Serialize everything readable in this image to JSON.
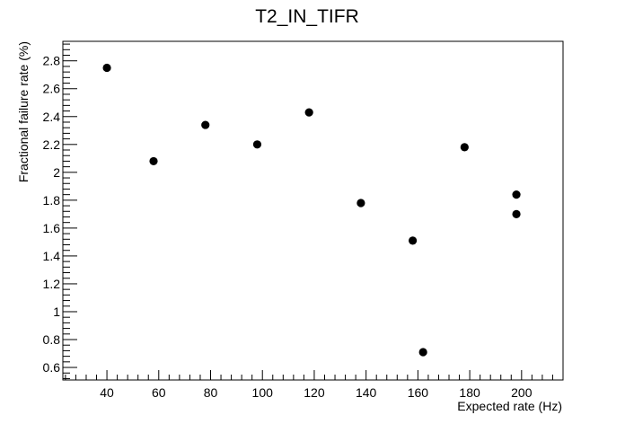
{
  "chart_data": {
    "type": "scatter",
    "title": "T2_IN_TIFR",
    "xlabel": "Expected rate (Hz)",
    "ylabel": "Fractional failure rate (%)",
    "xlim": [
      23,
      216
    ],
    "ylim": [
      0.51,
      2.94
    ],
    "x_ticks": [
      40,
      60,
      80,
      100,
      120,
      140,
      160,
      180,
      200
    ],
    "x_tick_labels": [
      "40",
      "60",
      "80",
      "100",
      "120",
      "140",
      "160",
      "180",
      "200"
    ],
    "y_ticks": [
      0.6,
      0.8,
      1,
      1.2,
      1.4,
      1.6,
      1.8,
      2,
      2.2,
      2.4,
      2.6,
      2.8
    ],
    "y_tick_labels": [
      "0.6",
      "0.8",
      "1",
      "1.2",
      "1.4",
      "1.6",
      "1.8",
      "2",
      "2.2",
      "2.4",
      "2.6",
      "2.8"
    ],
    "grid": false,
    "marker_color": "#000000",
    "points": [
      {
        "x": 40,
        "y": 2.75
      },
      {
        "x": 58,
        "y": 2.08
      },
      {
        "x": 78,
        "y": 2.34
      },
      {
        "x": 98,
        "y": 2.2
      },
      {
        "x": 118,
        "y": 2.43
      },
      {
        "x": 138,
        "y": 1.78
      },
      {
        "x": 158,
        "y": 1.51
      },
      {
        "x": 162,
        "y": 0.71
      },
      {
        "x": 178,
        "y": 2.18
      },
      {
        "x": 198,
        "y": 1.84
      },
      {
        "x": 198,
        "y": 1.7
      }
    ]
  }
}
